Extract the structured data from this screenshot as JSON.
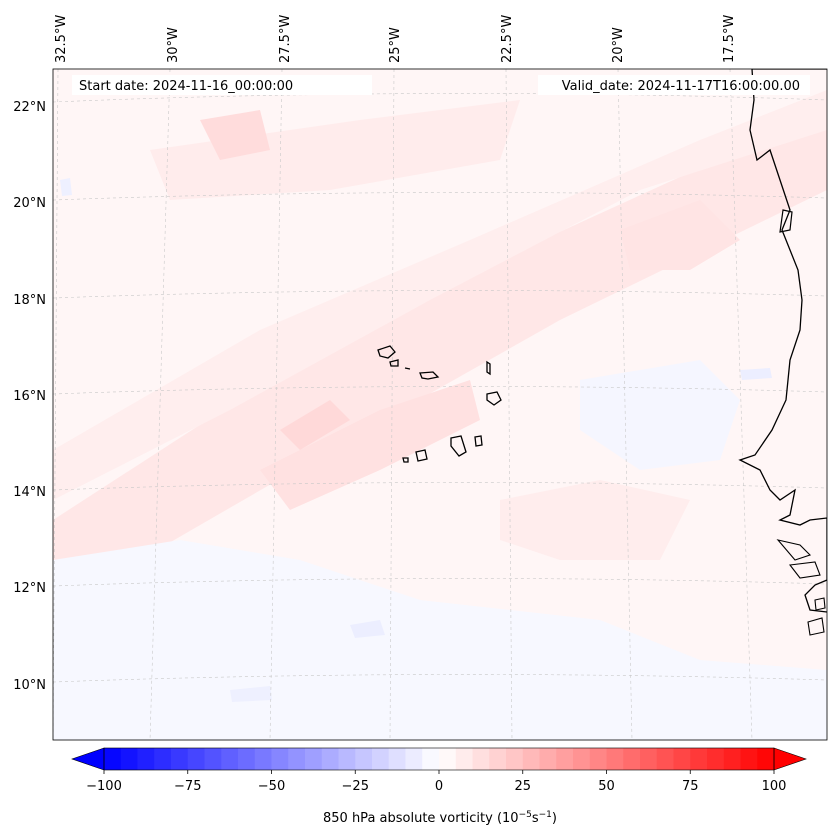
{
  "header": {
    "start_date": "Start date: 2024-11-16_00:00:00",
    "valid_date": "Valid_date: 2024-11-17T16:00:00.00"
  },
  "map": {
    "longitude_labels": [
      "32.5°W",
      "30°W",
      "27.5°W",
      "25°W",
      "22.5°W",
      "20°W",
      "17.5°W"
    ],
    "latitude_labels": [
      "22°N",
      "20°N",
      "18°N",
      "16°N",
      "14°N",
      "12°N",
      "10°N"
    ],
    "grid": true,
    "field_colors": {
      "weak_positive": "#ffeeee",
      "positive_band": "#ffe0e0",
      "weak_negative": "#f2f4ff",
      "background": "#fff6f6"
    }
  },
  "colorbar": {
    "label_prefix": "850 hPa absolute vorticity (10",
    "label_exp1": "−5",
    "label_mid": "s",
    "label_exp2": "−1",
    "label_suffix": ")",
    "ticks": [
      "−100",
      "−75",
      "−50",
      "−25",
      "0",
      "25",
      "50",
      "75",
      "100"
    ],
    "min_color": "#0000ff",
    "zero_color": "#ffffff",
    "max_color": "#ff0000"
  }
}
